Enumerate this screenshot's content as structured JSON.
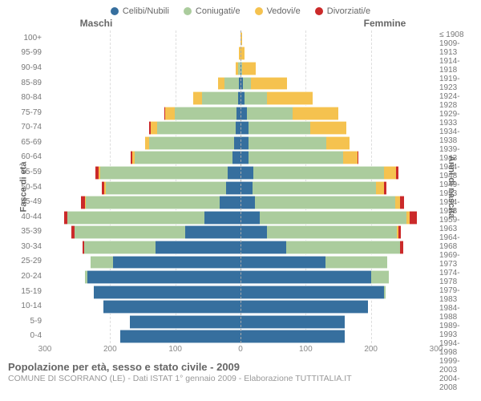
{
  "legend": [
    {
      "label": "Celibi/Nubili",
      "color": "#366f9e"
    },
    {
      "label": "Coniugati/e",
      "color": "#abcc9d"
    },
    {
      "label": "Vedovi/e",
      "color": "#f5c24f"
    },
    {
      "label": "Divorziati/e",
      "color": "#cb2a2a"
    }
  ],
  "headers": {
    "left": "Maschi",
    "right": "Femmine"
  },
  "ylabels": {
    "left": "Fasce di età",
    "right": "Anni di nascita"
  },
  "title": "Popolazione per età, sesso e stato civile - 2009",
  "subtitle": "COMUNE DI SCORRANO (LE) - Dati ISTAT 1° gennaio 2009 - Elaborazione TUTTITALIA.IT",
  "xaxis": {
    "max": 300,
    "ticks": [
      300,
      200,
      100,
      0,
      100,
      200,
      300
    ]
  },
  "colors": {
    "celibi": "#366f9e",
    "coniugati": "#abcc9d",
    "vedovi": "#f5c24f",
    "divorziati": "#cb2a2a",
    "grid": "#dddddd",
    "center": "#aaaaaa",
    "bg": "#ffffff"
  },
  "rows": [
    {
      "age": "100+",
      "birth": "≤ 1908",
      "m": {
        "c": 0,
        "m": 0,
        "w": 0,
        "d": 0
      },
      "f": {
        "c": 0,
        "m": 0,
        "w": 2,
        "d": 0
      }
    },
    {
      "age": "95-99",
      "birth": "1909-1913",
      "m": {
        "c": 0,
        "m": 0,
        "w": 2,
        "d": 0
      },
      "f": {
        "c": 0,
        "m": 0,
        "w": 6,
        "d": 0
      }
    },
    {
      "age": "90-94",
      "birth": "1914-1918",
      "m": {
        "c": 0,
        "m": 4,
        "w": 4,
        "d": 0
      },
      "f": {
        "c": 1,
        "m": 2,
        "w": 20,
        "d": 0
      }
    },
    {
      "age": "85-89",
      "birth": "1919-1923",
      "m": {
        "c": 2,
        "m": 22,
        "w": 10,
        "d": 0
      },
      "f": {
        "c": 4,
        "m": 12,
        "w": 55,
        "d": 0
      }
    },
    {
      "age": "80-84",
      "birth": "1924-1928",
      "m": {
        "c": 4,
        "m": 55,
        "w": 14,
        "d": 0
      },
      "f": {
        "c": 6,
        "m": 35,
        "w": 70,
        "d": 0
      }
    },
    {
      "age": "75-79",
      "birth": "1929-1933",
      "m": {
        "c": 6,
        "m": 95,
        "w": 14,
        "d": 2
      },
      "f": {
        "c": 10,
        "m": 70,
        "w": 70,
        "d": 0
      }
    },
    {
      "age": "70-74",
      "birth": "1934-1938",
      "m": {
        "c": 8,
        "m": 120,
        "w": 10,
        "d": 2
      },
      "f": {
        "c": 12,
        "m": 95,
        "w": 55,
        "d": 0
      }
    },
    {
      "age": "65-69",
      "birth": "1939-1943",
      "m": {
        "c": 10,
        "m": 130,
        "w": 6,
        "d": 0
      },
      "f": {
        "c": 12,
        "m": 120,
        "w": 35,
        "d": 0
      }
    },
    {
      "age": "60-64",
      "birth": "1944-1948",
      "m": {
        "c": 12,
        "m": 150,
        "w": 4,
        "d": 2
      },
      "f": {
        "c": 12,
        "m": 145,
        "w": 22,
        "d": 2
      }
    },
    {
      "age": "55-59",
      "birth": "1949-1953",
      "m": {
        "c": 20,
        "m": 195,
        "w": 3,
        "d": 4
      },
      "f": {
        "c": 20,
        "m": 200,
        "w": 18,
        "d": 4
      }
    },
    {
      "age": "50-54",
      "birth": "1954-1958",
      "m": {
        "c": 22,
        "m": 185,
        "w": 2,
        "d": 4
      },
      "f": {
        "c": 18,
        "m": 190,
        "w": 12,
        "d": 4
      }
    },
    {
      "age": "45-49",
      "birth": "1959-1963",
      "m": {
        "c": 32,
        "m": 205,
        "w": 2,
        "d": 6
      },
      "f": {
        "c": 22,
        "m": 215,
        "w": 8,
        "d": 6
      }
    },
    {
      "age": "40-44",
      "birth": "1964-1968",
      "m": {
        "c": 55,
        "m": 210,
        "w": 0,
        "d": 6
      },
      "f": {
        "c": 30,
        "m": 225,
        "w": 5,
        "d": 10
      }
    },
    {
      "age": "35-39",
      "birth": "1969-1973",
      "m": {
        "c": 85,
        "m": 170,
        "w": 0,
        "d": 4
      },
      "f": {
        "c": 40,
        "m": 200,
        "w": 2,
        "d": 4
      }
    },
    {
      "age": "30-34",
      "birth": "1974-1978",
      "m": {
        "c": 130,
        "m": 110,
        "w": 0,
        "d": 2
      },
      "f": {
        "c": 70,
        "m": 175,
        "w": 0,
        "d": 4
      }
    },
    {
      "age": "25-29",
      "birth": "1979-1983",
      "m": {
        "c": 195,
        "m": 35,
        "w": 0,
        "d": 0
      },
      "f": {
        "c": 130,
        "m": 95,
        "w": 0,
        "d": 0
      }
    },
    {
      "age": "20-24",
      "birth": "1984-1988",
      "m": {
        "c": 235,
        "m": 4,
        "w": 0,
        "d": 0
      },
      "f": {
        "c": 200,
        "m": 28,
        "w": 0,
        "d": 0
      }
    },
    {
      "age": "15-19",
      "birth": "1989-1993",
      "m": {
        "c": 225,
        "m": 0,
        "w": 0,
        "d": 0
      },
      "f": {
        "c": 220,
        "m": 2,
        "w": 0,
        "d": 0
      }
    },
    {
      "age": "10-14",
      "birth": "1994-1998",
      "m": {
        "c": 210,
        "m": 0,
        "w": 0,
        "d": 0
      },
      "f": {
        "c": 195,
        "m": 0,
        "w": 0,
        "d": 0
      }
    },
    {
      "age": "5-9",
      "birth": "1999-2003",
      "m": {
        "c": 170,
        "m": 0,
        "w": 0,
        "d": 0
      },
      "f": {
        "c": 160,
        "m": 0,
        "w": 0,
        "d": 0
      }
    },
    {
      "age": "0-4",
      "birth": "2004-2008",
      "m": {
        "c": 185,
        "m": 0,
        "w": 0,
        "d": 0
      },
      "f": {
        "c": 160,
        "m": 0,
        "w": 0,
        "d": 0
      }
    }
  ]
}
